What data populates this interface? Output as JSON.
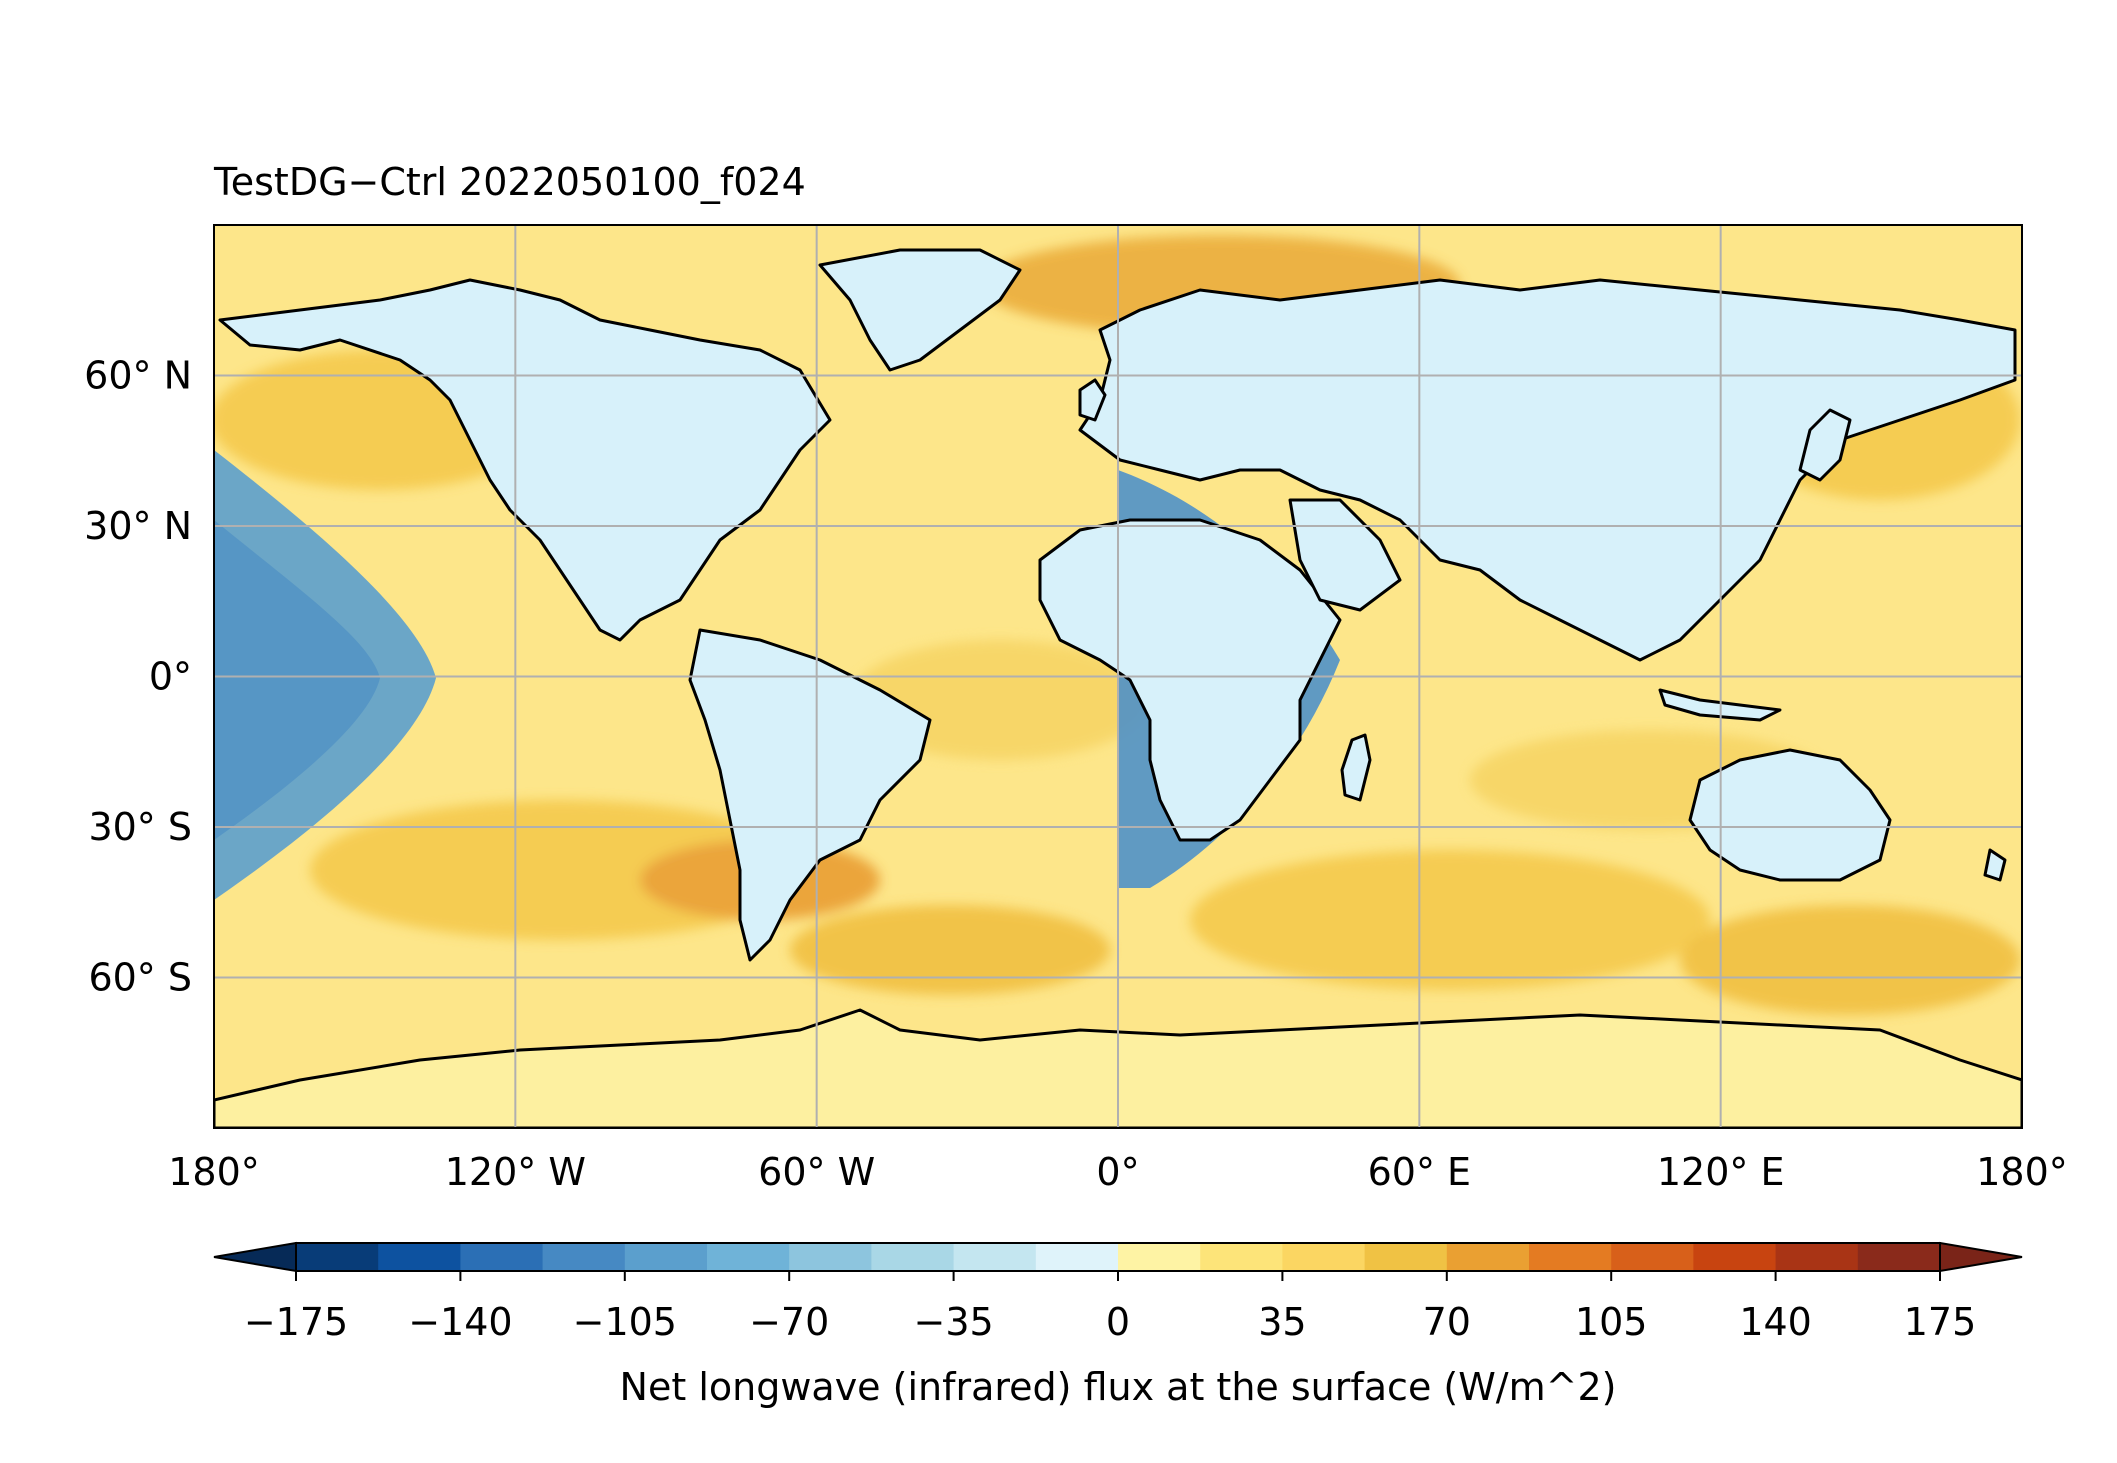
{
  "title": "TestDG−Ctrl 2022050100_f024",
  "map": {
    "projection": "PlateCarree",
    "lon_range": [
      -180,
      180
    ],
    "lat_range": [
      -90,
      90
    ],
    "lon_ticks": [
      {
        "value": -180,
        "label": "180°"
      },
      {
        "value": -120,
        "label": "120° W"
      },
      {
        "value": -60,
        "label": "60° W"
      },
      {
        "value": 0,
        "label": "0°"
      },
      {
        "value": 60,
        "label": "60° E"
      },
      {
        "value": 120,
        "label": "120° E"
      },
      {
        "value": 180,
        "label": "180°"
      }
    ],
    "lat_ticks": [
      {
        "value": 60,
        "label": "60° N"
      },
      {
        "value": 30,
        "label": "30° N"
      },
      {
        "value": 0,
        "label": "0°"
      },
      {
        "value": -30,
        "label": "30° S"
      },
      {
        "value": -60,
        "label": "60° S"
      }
    ],
    "gridlines": true,
    "coastlines": true,
    "ocean_color": "#fde68a",
    "land_color": "#d7f1fa"
  },
  "colorbar": {
    "label": "Net longwave (infrared) flux at the surface (W/m^2)",
    "min": -175,
    "max": 175,
    "extend": "both",
    "levels": [
      -175,
      -157.5,
      -140,
      -122.5,
      -105,
      -87.5,
      -70,
      -52.5,
      -35,
      -17.5,
      0,
      17.5,
      35,
      52.5,
      70,
      87.5,
      105,
      122.5,
      140,
      157.5,
      175
    ],
    "colors": [
      "#083c78",
      "#0d52a0",
      "#2b6fb5",
      "#4689c3",
      "#5b9fcd",
      "#6fb3d8",
      "#8dc5de",
      "#a9d7e6",
      "#c4e6f0",
      "#dff3fa",
      "#fef3a4",
      "#fde479",
      "#fbd662",
      "#f0c244",
      "#eaa032",
      "#e47b22",
      "#d8601a",
      "#c84410",
      "#a93415",
      "#8a2a1b"
    ],
    "under_color": "#062a57",
    "over_color": "#7a2418",
    "ticks": [
      {
        "value": -175,
        "label": "−175"
      },
      {
        "value": -140,
        "label": "−140"
      },
      {
        "value": -105,
        "label": "−105"
      },
      {
        "value": -70,
        "label": "−70"
      },
      {
        "value": -35,
        "label": "−35"
      },
      {
        "value": 0,
        "label": "0"
      },
      {
        "value": 35,
        "label": "35"
      },
      {
        "value": 70,
        "label": "70"
      },
      {
        "value": 105,
        "label": "105"
      },
      {
        "value": 140,
        "label": "140"
      },
      {
        "value": 175,
        "label": "175"
      }
    ]
  }
}
